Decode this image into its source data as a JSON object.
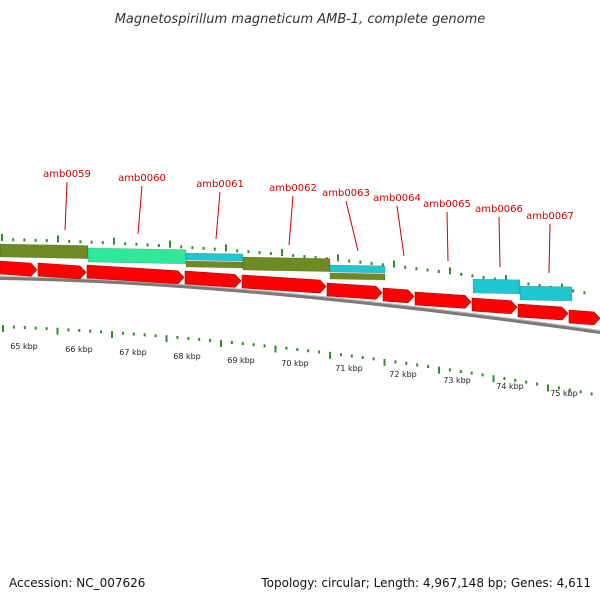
{
  "title": "Magnetospirillum magneticum AMB-1, complete genome",
  "accession": "Accession: NC_007626",
  "summary": "Topology: circular; Length: 4,967,148 bp; Genes: 4,611",
  "colors": {
    "backbone": "#8c8c8c",
    "tick": "#2e8b2e",
    "label_line": "#cc0000",
    "cds_forward": "#ff0000",
    "feature_olive": "#6f8a22",
    "feature_mint": "#2fe89a",
    "feature_cyan": "#1fc8d0"
  },
  "kbp_labels": [
    "65 kbp",
    "66 kbp",
    "67 kbp",
    "68 kbp",
    "69 kbp",
    "70 kbp",
    "71 kbp",
    "72 kbp",
    "73 kbp",
    "74 kbp",
    "75 kbp"
  ],
  "gene_labels": [
    "amb0059",
    "amb0060",
    "amb0061",
    "amb0062",
    "amb0063",
    "amb0064",
    "amb0065",
    "amb0066",
    "amb0067"
  ]
}
